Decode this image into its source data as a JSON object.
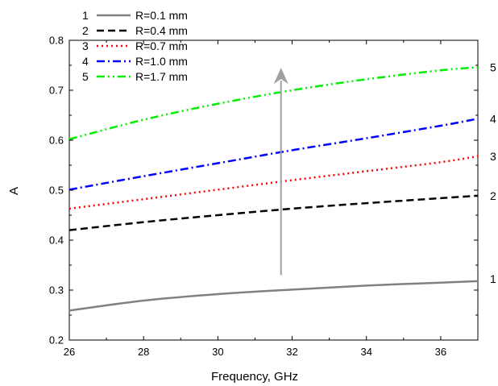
{
  "chart_data": {
    "type": "line",
    "title": "",
    "xlabel": "Frequency, GHz",
    "ylabel": "A",
    "xlim": [
      26,
      37
    ],
    "ylim": [
      0.2,
      0.8
    ],
    "x_ticks": [
      "26",
      "28",
      "30",
      "32",
      "34",
      "36"
    ],
    "y_ticks": [
      "0.2",
      "0.3",
      "0.4",
      "0.5",
      "0.6",
      "0.7",
      "0.8"
    ],
    "grid": false,
    "legend_position": "top-left",
    "x": [
      26,
      28,
      30,
      32,
      34,
      36,
      37
    ],
    "series": [
      {
        "name": "R=0.1 mm",
        "number": "1",
        "color": "#808080",
        "dash": "solid",
        "values": [
          0.259,
          0.279,
          0.292,
          0.301,
          0.309,
          0.315,
          0.318
        ]
      },
      {
        "name": "R=0.4 mm",
        "number": "2",
        "color": "#000000",
        "dash": "dash",
        "values": [
          0.42,
          0.436,
          0.45,
          0.463,
          0.474,
          0.484,
          0.489
        ]
      },
      {
        "name": "R=0.7 mm",
        "number": "3",
        "color": "#ff0000",
        "dash": "dot",
        "values": [
          0.463,
          0.482,
          0.501,
          0.52,
          0.538,
          0.556,
          0.568
        ]
      },
      {
        "name": "R=1.0 mm",
        "number": "4",
        "color": "#0000ff",
        "dash": "dashdot",
        "values": [
          0.501,
          0.528,
          0.554,
          0.58,
          0.604,
          0.629,
          0.643
        ]
      },
      {
        "name": "R=1.7 mm",
        "number": "5",
        "color": "#00ee00",
        "dash": "dashdotdot",
        "values": [
          0.602,
          0.641,
          0.673,
          0.7,
          0.722,
          0.74,
          0.746
        ]
      }
    ],
    "annotations": {
      "arrow": {
        "x": 31.7,
        "y_start": 0.33,
        "y_end": 0.745,
        "color": "#a0a0a0"
      }
    }
  }
}
